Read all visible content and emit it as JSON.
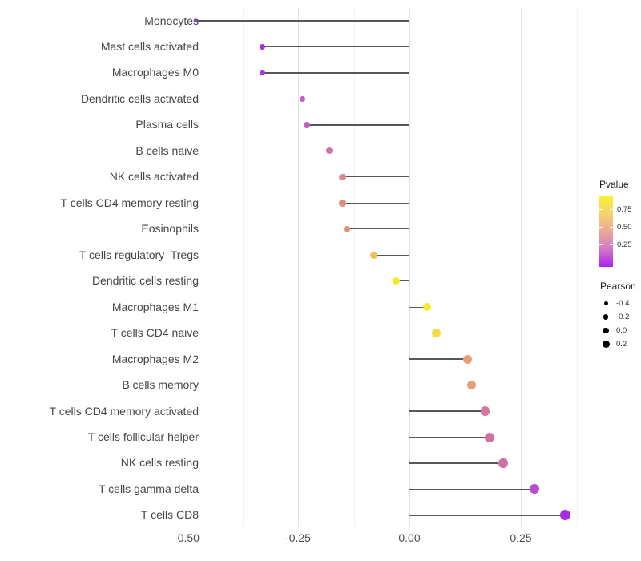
{
  "chart_data": {
    "type": "lollipop",
    "title": "",
    "xlabel": "",
    "ylabel": "",
    "x_tick_labels": [
      "-0.50",
      "-0.25",
      "0.00",
      "0.25"
    ],
    "x_tick_values": [
      -0.5,
      -0.25,
      0.0,
      0.25
    ],
    "x_minor_values": [
      -0.375,
      -0.125,
      0.125,
      0.375
    ],
    "xlim": [
      -0.52,
      0.4
    ],
    "grid": true,
    "legend_position": "right",
    "rows": [
      {
        "label": "Monocytes",
        "pearson": -0.48,
        "color": "#9C3ED6",
        "size": 3.5
      },
      {
        "label": "Mast cells activated",
        "pearson": -0.33,
        "color": "#A438DC",
        "size": 7
      },
      {
        "label": "Macrophages M0",
        "pearson": -0.33,
        "color": "#A438DC",
        "size": 7
      },
      {
        "label": "Dendritic cells activated",
        "pearson": -0.24,
        "color": "#C35BC9",
        "size": 7.5
      },
      {
        "label": "Plasma cells",
        "pearson": -0.23,
        "color": "#C560C3",
        "size": 7.5
      },
      {
        "label": "B cells naive",
        "pearson": -0.18,
        "color": "#CF6FA9",
        "size": 8
      },
      {
        "label": "NK cells activated",
        "pearson": -0.15,
        "color": "#DC8A8C",
        "size": 8.5
      },
      {
        "label": "T cells CD4 memory resting",
        "pearson": -0.15,
        "color": "#DE8D85",
        "size": 8.5
      },
      {
        "label": "Eosinophils",
        "pearson": -0.14,
        "color": "#E0917E",
        "size": 8.5
      },
      {
        "label": "T cells regulatory  Tregs",
        "pearson": -0.08,
        "color": "#EDC453",
        "size": 9
      },
      {
        "label": "Dendritic cells resting",
        "pearson": -0.03,
        "color": "#F2EC28",
        "size": 9.5
      },
      {
        "label": "Macrophages M1",
        "pearson": 0.04,
        "color": "#F4EC27",
        "size": 10
      },
      {
        "label": "T cells CD4 naive",
        "pearson": 0.06,
        "color": "#F1DE43",
        "size": 10.5
      },
      {
        "label": "Macrophages M2",
        "pearson": 0.13,
        "color": "#E89D74",
        "size": 11
      },
      {
        "label": "B cells memory",
        "pearson": 0.14,
        "color": "#E89C77",
        "size": 11
      },
      {
        "label": "T cells CD4 memory activated",
        "pearson": 0.17,
        "color": "#D5769F",
        "size": 11.5
      },
      {
        "label": "T cells follicular helper",
        "pearson": 0.18,
        "color": "#D2719F",
        "size": 12
      },
      {
        "label": "NK cells resting",
        "pearson": 0.21,
        "color": "#CC73A6",
        "size": 11.5
      },
      {
        "label": "T cells gamma delta",
        "pearson": 0.28,
        "color": "#BB4BD2",
        "size": 12
      },
      {
        "label": "T cells CD8",
        "pearson": 0.35,
        "color": "#A92BE2",
        "size": 13
      }
    ],
    "legend": {
      "pvalue": {
        "title": "Pvalue",
        "tick_labels": [
          "0.75",
          "0.50",
          "0.25"
        ],
        "gradient_top_to_bottom": [
          "#F9F32B",
          "#F5D471",
          "#EBA995",
          "#D377C6",
          "#AB25EE"
        ]
      },
      "pearson": {
        "title": "Pearson",
        "items": [
          {
            "label": "-0.4",
            "size": 5
          },
          {
            "label": "-0.2",
            "size": 6.5
          },
          {
            "label": "0.0",
            "size": 7.5
          },
          {
            "label": "0.2",
            "size": 9
          }
        ]
      }
    }
  }
}
